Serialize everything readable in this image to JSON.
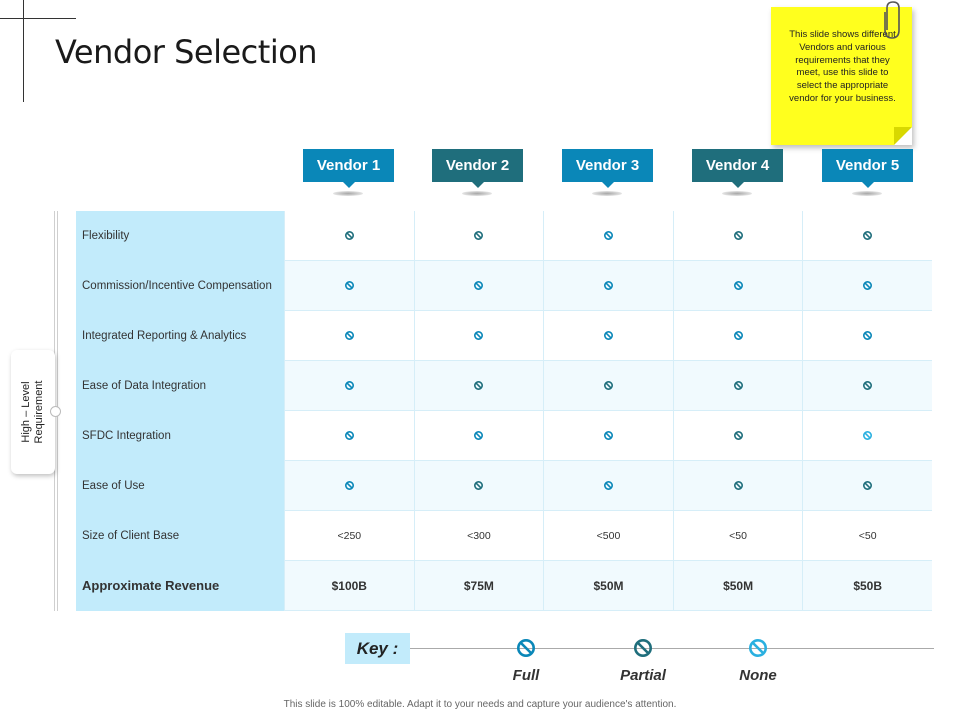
{
  "title": "Vendor Selection",
  "sticky_note": "This slide shows different Vendors and various requirements that they meet, use this slide to select the appropriate vendor for your business.",
  "side_label": {
    "line1": "High – Level",
    "line2": "Requirement"
  },
  "vendors": [
    {
      "label": "Vendor 1",
      "color": "#0a87b8"
    },
    {
      "label": "Vendor 2",
      "color": "#1f6e7c"
    },
    {
      "label": "Vendor 3",
      "color": "#0a87b8"
    },
    {
      "label": "Vendor 4",
      "color": "#1f6e7c"
    },
    {
      "label": "Vendor 5",
      "color": "#0a87b8"
    }
  ],
  "rows": [
    {
      "label": "Flexibility",
      "cells": [
        "partial",
        "partial",
        "full",
        "partial",
        "partial"
      ]
    },
    {
      "label": "Commission/Incentive Compensation",
      "cells": [
        "full",
        "full",
        "full",
        "full",
        "full"
      ]
    },
    {
      "label": "Integrated Reporting & Analytics",
      "cells": [
        "full",
        "full",
        "full",
        "full",
        "full"
      ]
    },
    {
      "label": "Ease of Data Integration",
      "cells": [
        "full",
        "partial",
        "partial",
        "partial",
        "partial"
      ]
    },
    {
      "label": "SFDC Integration",
      "cells": [
        "full",
        "full",
        "full",
        "partial",
        "none"
      ]
    },
    {
      "label": "Ease of Use",
      "cells": [
        "full",
        "partial",
        "full",
        "partial",
        "partial"
      ]
    },
    {
      "label": "Size of Client Base",
      "cells": [
        "<250",
        "<300",
        "<500",
        "<50",
        "<50"
      ]
    },
    {
      "label": "Approximate Revenue",
      "cells": [
        "$100B",
        "$75M",
        "$50M",
        "$50M",
        "$50B"
      ]
    }
  ],
  "key": {
    "label": "Key :",
    "items": [
      {
        "type": "full",
        "label": "Full"
      },
      {
        "type": "partial",
        "label": "Partial"
      },
      {
        "type": "none",
        "label": "None"
      }
    ]
  },
  "icon_colors": {
    "full": "#0a87b8",
    "partial": "#1f6e7c",
    "none": "#2ab0e0"
  },
  "footer": "This slide is 100% editable. Adapt it to your needs and capture your audience's attention."
}
